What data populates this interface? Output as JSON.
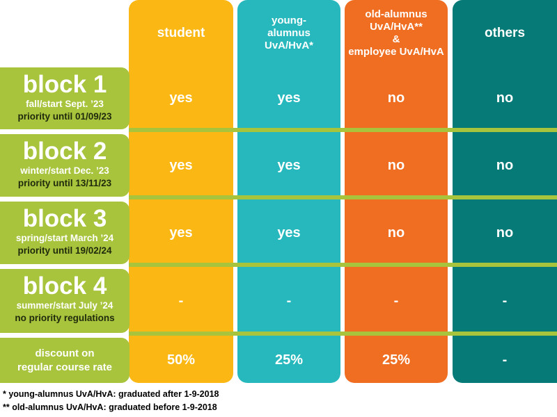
{
  "columns": {
    "student": "student",
    "young": [
      "young-",
      "alumnus",
      "UvA/HvA*"
    ],
    "old": [
      "old-alumnus",
      "UvA/HvA**",
      "&",
      "employee UvA/HvA"
    ],
    "others": "others"
  },
  "rows": [
    {
      "title": "block 1",
      "sub": "fall/start Sept. ’23",
      "priority": "priority until 01/09/23",
      "student": "yes",
      "young": "yes",
      "old": "no",
      "others": "no"
    },
    {
      "title": "block 2",
      "sub": "winter/start Dec. ’23",
      "priority": "priority until 13/11/23",
      "student": "yes",
      "young": "yes",
      "old": "no",
      "others": "no"
    },
    {
      "title": "block 3",
      "sub": "spring/start March ’24",
      "priority": "priority until 19/02/24",
      "student": "yes",
      "young": "yes",
      "old": "no",
      "others": "no"
    },
    {
      "title": "block 4",
      "sub": "summer/start July ’24",
      "priority": "no priority regulations",
      "student": "-",
      "young": "-",
      "old": "-",
      "others": "-"
    }
  ],
  "discount": {
    "label": [
      "discount on",
      "regular course rate"
    ],
    "student": "50%",
    "young": "25%",
    "old": "25%",
    "others": "-"
  },
  "footnotes": [
    "* young-alumnus UvA/HvA: graduated after 1-9-2018",
    "** old-alumnus UvA/HvA: graduated before 1-9-2018"
  ],
  "colors": {
    "student": "#fbb713",
    "young": "#27b8bd",
    "old": "#ef6e22",
    "others": "#057a76",
    "label": "#a7c43c"
  }
}
